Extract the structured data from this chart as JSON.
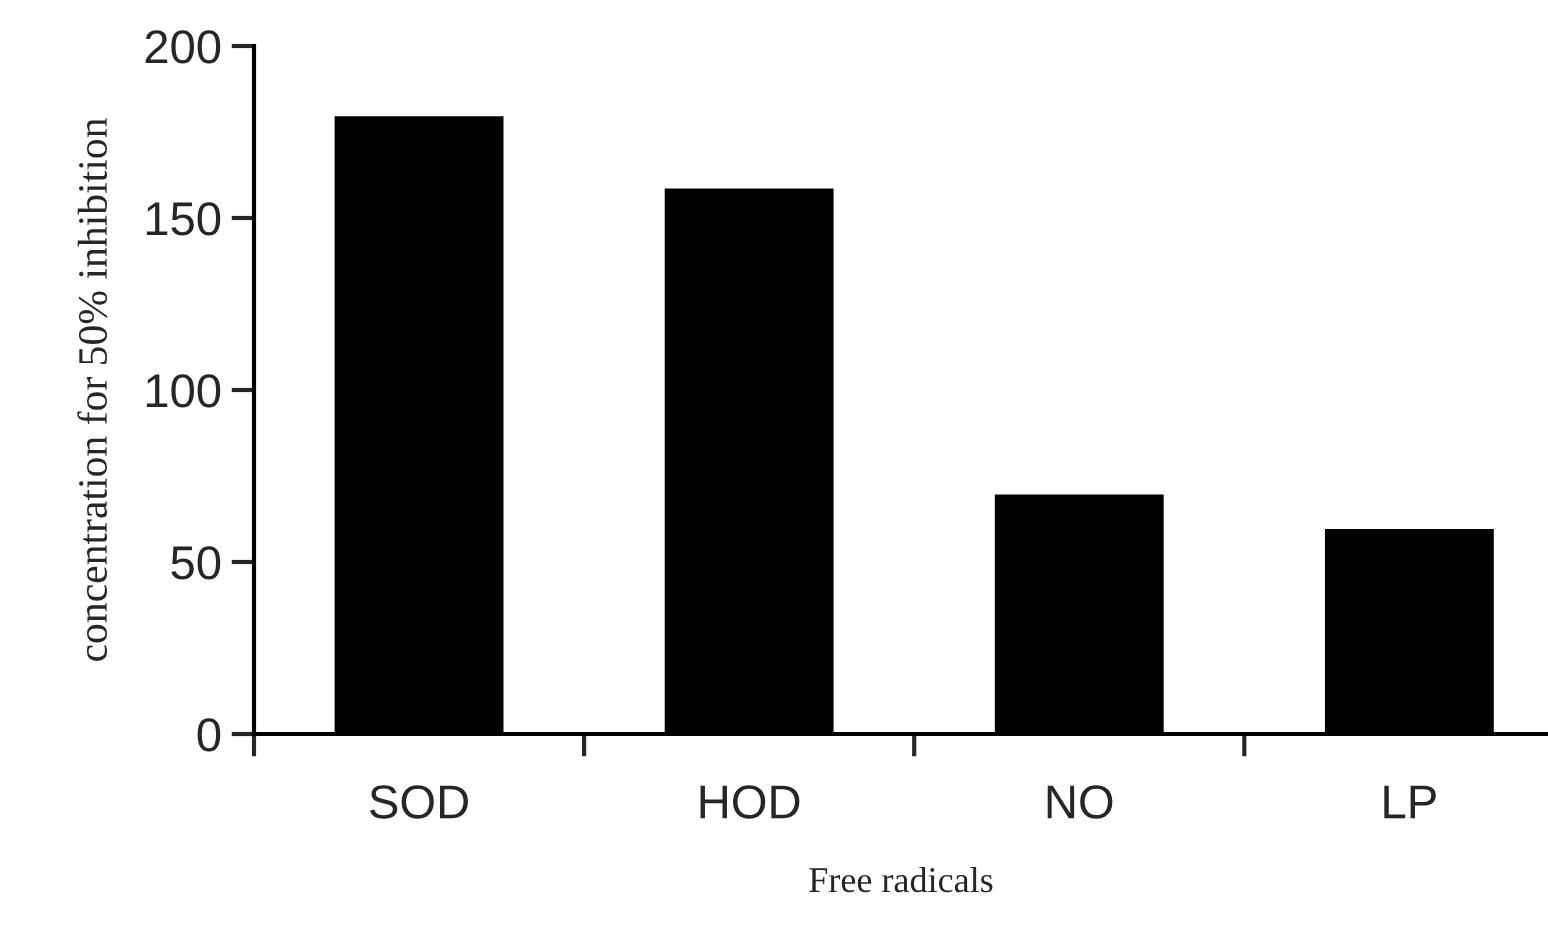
{
  "chart_data": {
    "type": "bar",
    "xlabel": "Free radicals",
    "ylabel": "concentration for 50% inhibition",
    "categories": [
      "SOD",
      "HOD",
      "NO",
      "LP"
    ],
    "values": [
      180,
      159,
      70,
      60
    ],
    "color": "#000000",
    "ylim": [
      0,
      200
    ],
    "yticks": [
      0,
      50,
      100,
      150,
      200
    ],
    "grid": false,
    "legend": false
  }
}
